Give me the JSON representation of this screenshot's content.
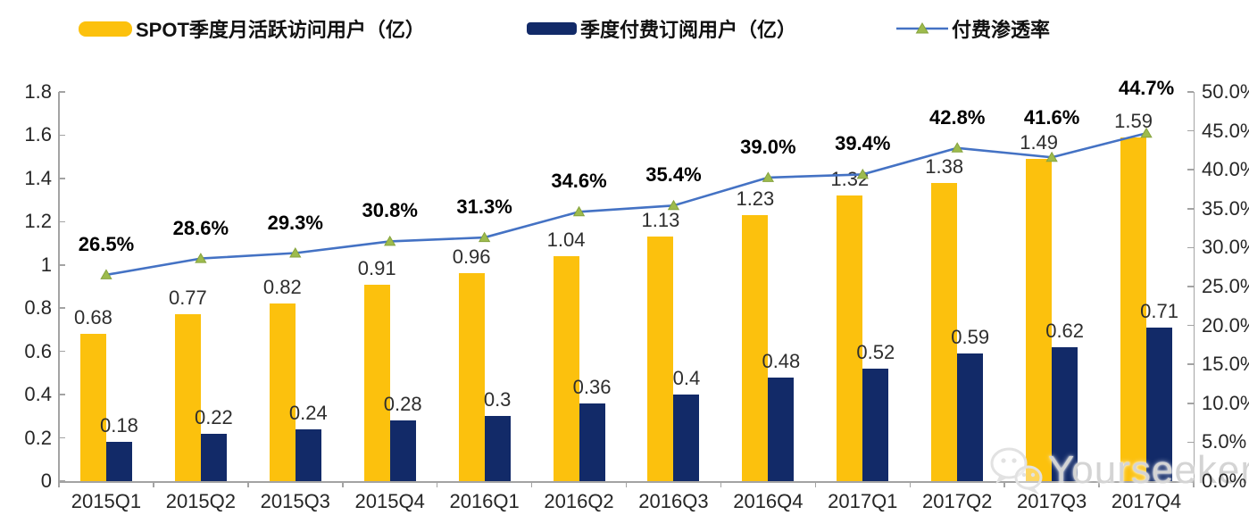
{
  "chart_data": {
    "type": "bar",
    "title": "",
    "categories": [
      "2015Q1",
      "2015Q2",
      "2015Q3",
      "2015Q4",
      "2016Q1",
      "2016Q2",
      "2016Q3",
      "2016Q4",
      "2017Q1",
      "2017Q2",
      "2017Q3",
      "2017Q4"
    ],
    "series": [
      {
        "name": "SPOT季度月活跃访问用户（亿）",
        "type": "bar",
        "color": "#FCC10D",
        "values": [
          0.68,
          0.77,
          0.82,
          0.91,
          0.96,
          1.04,
          1.13,
          1.23,
          1.32,
          1.38,
          1.49,
          1.59
        ],
        "labels": [
          "0.68",
          "0.77",
          "0.82",
          "0.91",
          "0.96",
          "1.04",
          "1.13",
          "1.23",
          "1.32",
          "1.38",
          "1.49",
          "1.59"
        ]
      },
      {
        "name": "季度付费订阅用户（亿）",
        "type": "bar",
        "color": "#122A68",
        "values": [
          0.18,
          0.22,
          0.24,
          0.28,
          0.3,
          0.36,
          0.4,
          0.48,
          0.52,
          0.59,
          0.62,
          0.71
        ],
        "labels": [
          "0.18",
          "0.22",
          "0.24",
          "0.28",
          "0.3",
          "0.36",
          "0.4",
          "0.48",
          "0.52",
          "0.59",
          "0.62",
          "0.71"
        ]
      },
      {
        "name": "付费渗透率",
        "type": "line",
        "color": "#4472C4",
        "marker": "triangle",
        "marker_color": "#9DBB4D",
        "values": [
          26.5,
          28.6,
          29.3,
          30.8,
          31.3,
          34.6,
          35.4,
          39.0,
          39.4,
          42.8,
          41.6,
          44.7
        ],
        "labels": [
          "26.5%",
          "28.6%",
          "29.3%",
          "30.8%",
          "31.3%",
          "34.6%",
          "35.4%",
          "39.0%",
          "39.4%",
          "42.8%",
          "41.6%",
          "44.7%"
        ]
      }
    ],
    "left_axis": {
      "min": 0,
      "max": 1.8,
      "ticks": [
        "0",
        "0.2",
        "0.4",
        "0.6",
        "0.8",
        "1",
        "1.2",
        "1.4",
        "1.6",
        "1.8"
      ]
    },
    "right_axis": {
      "min": 0,
      "max": 50,
      "ticks": [
        "0.0%",
        "5.0%",
        "10.0%",
        "15.0%",
        "20.0%",
        "25.0%",
        "30.0%",
        "35.0%",
        "40.0%",
        "45.0%",
        "50.0%"
      ]
    },
    "grid": false,
    "legend_position": "top"
  },
  "watermark": {
    "text": "Yourseeker",
    "icon": "wechat-icon"
  }
}
